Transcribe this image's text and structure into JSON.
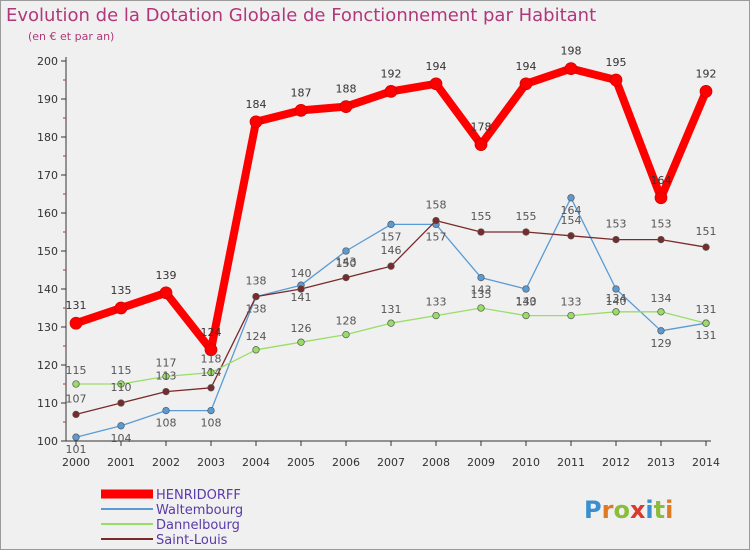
{
  "chart_data": {
    "type": "line",
    "title": "Evolution de la Dotation Globale de Fonctionnement par Habitant",
    "subtitle": "(en € et par an)",
    "x": [
      "2000",
      "2001",
      "2002",
      "2003",
      "2004",
      "2005",
      "2006",
      "2007",
      "2008",
      "2009",
      "2010",
      "2011",
      "2012",
      "2013",
      "2014"
    ],
    "ylim": [
      100,
      200
    ],
    "yticks": [
      100,
      110,
      120,
      130,
      140,
      150,
      160,
      170,
      180,
      190,
      200
    ],
    "grid": false,
    "legend_position": "bottom-left",
    "series": [
      {
        "name": "HENRIDORFF",
        "color": "#ff0000",
        "values": [
          131,
          135,
          139,
          124,
          184,
          187,
          188,
          192,
          194,
          178,
          194,
          198,
          195,
          164,
          192
        ]
      },
      {
        "name": "Waltembourg",
        "color": "#5b9bd5",
        "values": [
          101,
          104,
          108,
          108,
          138,
          141,
          150,
          157,
          157,
          143,
          140,
          164,
          140,
          129,
          131
        ]
      },
      {
        "name": "Dannelbourg",
        "color": "#99dd66",
        "values": [
          115,
          115,
          117,
          118,
          124,
          126,
          128,
          131,
          133,
          135,
          133,
          133,
          134,
          134,
          131
        ]
      },
      {
        "name": "Saint-Louis",
        "color": "#7a2a2a",
        "values": [
          107,
          110,
          113,
          114,
          138,
          140,
          143,
          146,
          158,
          155,
          155,
          154,
          153,
          153,
          151
        ]
      }
    ],
    "series_label_colors": [
      "#333333",
      "#555555",
      "#555555",
      "#555555"
    ],
    "label_offsets": [
      -14,
      16,
      -10,
      -12
    ]
  },
  "logo": {
    "text": "Proxiti"
  }
}
